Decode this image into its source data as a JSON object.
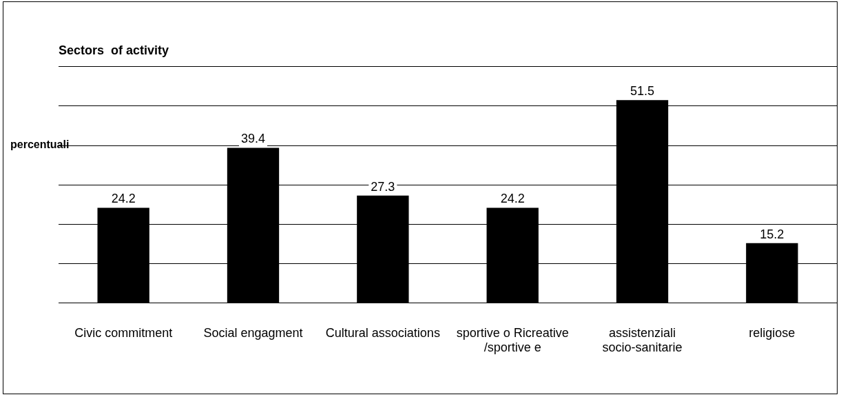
{
  "chart_data": {
    "type": "bar",
    "title": "Sectors  of activity",
    "ylabel": "percentuali",
    "categories": [
      "Civic commitment",
      "Social engagment",
      "Cultural associations",
      "sportive o Ricreative /sportive e",
      "assistenziali socio-sanitarie",
      "religiose"
    ],
    "values": [
      24.2,
      39.4,
      27.3,
      24.2,
      51.5,
      15.2
    ],
    "color": "#000000",
    "ylim": [
      0,
      60
    ],
    "grid": "y",
    "tick_labels": "x",
    "data_labels": true,
    "legend": false
  }
}
